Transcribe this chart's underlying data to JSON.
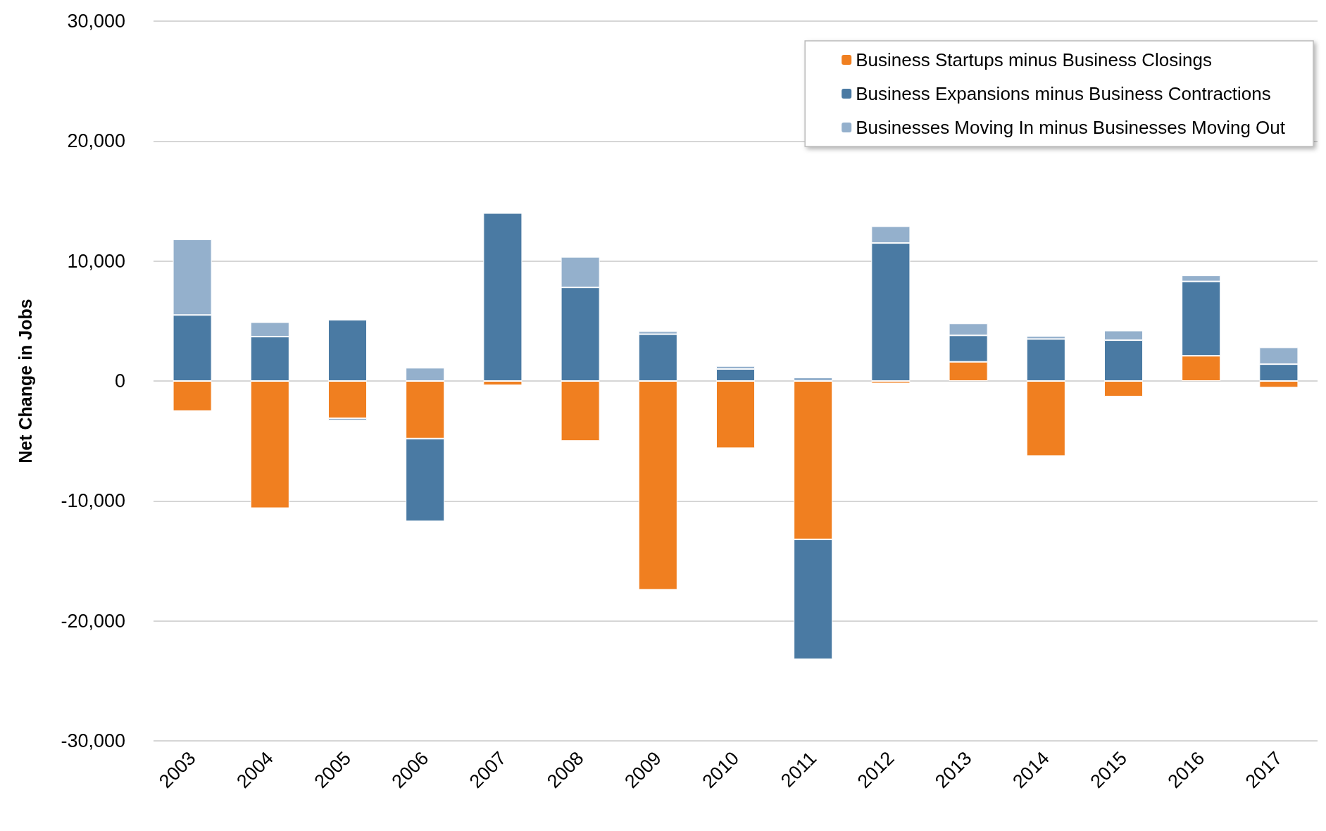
{
  "chart_data": {
    "type": "bar",
    "stacked": true,
    "ylabel": "Net Change in Jobs",
    "categories": [
      "2003",
      "2004",
      "2005",
      "2006",
      "2007",
      "2008",
      "2009",
      "2010",
      "2011",
      "2012",
      "2013",
      "2014",
      "2015",
      "2016",
      "2017"
    ],
    "series": [
      {
        "name": "Business Startups minus Business Closings",
        "color": "#f07f20",
        "values": [
          -2500,
          -10600,
          -3100,
          -4800,
          -350,
          -5000,
          -17400,
          -5600,
          -13200,
          -200,
          1600,
          -6250,
          -1300,
          2100,
          -550
        ]
      },
      {
        "name": "Business Expansions minus Business Contractions",
        "color": "#4a7aa3",
        "values": [
          5500,
          3700,
          5100,
          -6900,
          14000,
          7800,
          3900,
          1000,
          -10000,
          11500,
          2200,
          3500,
          3400,
          6200,
          1400
        ]
      },
      {
        "name": "Businesses Moving In minus Businesses Moving Out",
        "color": "#94b0cc",
        "values": [
          6300,
          1200,
          -200,
          1100,
          null,
          2550,
          250,
          250,
          300,
          1400,
          1000,
          250,
          800,
          500,
          1400
        ]
      }
    ],
    "ylim": [
      -30000,
      30000
    ],
    "yticks": [
      {
        "value": -30000,
        "label": "-30,000"
      },
      {
        "value": -20000,
        "label": "-20,000"
      },
      {
        "value": -10000,
        "label": "-10,000"
      },
      0,
      {
        "value": 10000,
        "label": "10,000"
      },
      {
        "value": 20000,
        "label": "20,000"
      },
      {
        "value": 30000,
        "label": "30,000"
      }
    ],
    "grid": "y",
    "legend": "top right"
  }
}
